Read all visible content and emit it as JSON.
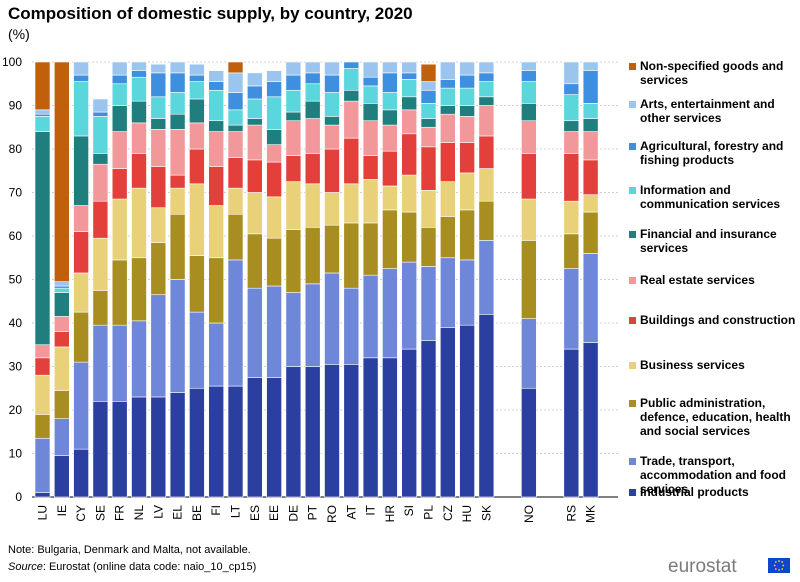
{
  "chart_data": {
    "type": "bar",
    "stacked": true,
    "title": "Composition of domestic supply, by country, 2020",
    "unit_label": "(%)",
    "ylim": [
      0,
      100
    ],
    "yticks": [
      0,
      10,
      20,
      30,
      40,
      50,
      60,
      70,
      80,
      90,
      100
    ],
    "categories": [
      "LU",
      "IE",
      "CY",
      "SE",
      "FR",
      "NL",
      "LV",
      "EL",
      "BE",
      "FI",
      "LT",
      "ES",
      "EE",
      "DE",
      "PT",
      "RO",
      "AT",
      "IT",
      "HR",
      "SI",
      "PL",
      "CZ",
      "HU",
      "SK",
      "NO",
      "RS",
      "MK"
    ],
    "group_breaks_after": [
      "SK",
      "NO"
    ],
    "legend_position": "right",
    "series": [
      {
        "name": "Industrial products",
        "color": "#2a3fa0",
        "values": [
          1,
          9.5,
          11,
          22,
          22,
          23,
          23,
          24,
          25,
          25.5,
          25.5,
          27.5,
          27.5,
          30,
          30,
          30.5,
          30.5,
          32,
          32,
          34,
          36,
          39,
          39.5,
          42,
          25,
          34,
          35.5
        ]
      },
      {
        "name": "Trade, transport, accommodation and food services",
        "color": "#6f87d9",
        "values": [
          12.5,
          8.5,
          20,
          17.5,
          17.5,
          17.5,
          23.5,
          26,
          17.5,
          14.5,
          29,
          20.5,
          21,
          17,
          19,
          21,
          17.5,
          19,
          20.5,
          20,
          17,
          16,
          15,
          17,
          16,
          18.5,
          20.5
        ]
      },
      {
        "name": "Public administration, defence, education, health and social services",
        "color": "#a88e20",
        "values": [
          5.5,
          6.5,
          11.5,
          8,
          15,
          14.5,
          12,
          15,
          13,
          15,
          10.5,
          12.5,
          11,
          14.5,
          13,
          11,
          15,
          12,
          13.5,
          11.5,
          9,
          9.5,
          11.5,
          9,
          18,
          8,
          9.5
        ]
      },
      {
        "name": "Business services",
        "color": "#e9d17a",
        "values": [
          9,
          10,
          9,
          12,
          14,
          16,
          8,
          6,
          16.5,
          12,
          6,
          9.5,
          9.5,
          11,
          10,
          7.5,
          9,
          10,
          5.5,
          8.5,
          8.5,
          8,
          8.5,
          7.5,
          9.5,
          7.5,
          4
        ]
      },
      {
        "name": "Buildings and construction",
        "color": "#e3403c",
        "values": [
          4,
          3.5,
          9.5,
          8.5,
          7,
          8,
          9.5,
          3,
          8,
          9,
          7,
          7.5,
          8,
          6,
          7,
          10,
          10.5,
          5.5,
          8,
          9.5,
          10,
          9,
          7,
          7.5,
          10.5,
          11,
          8
        ]
      },
      {
        "name": "Real estate services",
        "color": "#f2979a",
        "values": [
          3,
          3.5,
          6,
          8.5,
          8.5,
          7,
          8.5,
          10.5,
          6,
          8,
          6,
          8,
          4,
          8,
          8,
          5.5,
          8.5,
          8,
          6,
          5.5,
          4.5,
          6.5,
          6,
          7,
          7.5,
          5,
          6.5
        ]
      },
      {
        "name": "Financial and insurance services",
        "color": "#217e7e",
        "values": [
          49,
          5.5,
          16,
          2.5,
          6,
          5,
          2.5,
          3.5,
          5.5,
          2.5,
          1.5,
          1.5,
          3.5,
          2,
          4,
          2,
          2.5,
          4,
          3.5,
          3,
          2,
          2,
          2.5,
          2,
          4,
          2.5,
          3
        ]
      },
      {
        "name": "Information and communication services",
        "color": "#5ad6dc",
        "values": [
          3.5,
          1,
          12.5,
          8.5,
          5,
          5.5,
          5,
          5,
          4,
          7,
          3.5,
          4.5,
          7.5,
          5,
          4,
          5.5,
          5,
          4,
          4,
          4,
          3.5,
          4,
          4,
          3.5,
          5,
          6,
          3.5
        ]
      },
      {
        "name": "Agricultural, forestry and fishing products",
        "color": "#3f8fe0",
        "values": [
          0.5,
          0.5,
          1.5,
          1,
          2,
          1.5,
          5.5,
          4.5,
          1.5,
          2,
          4,
          3,
          3.5,
          3.5,
          2.5,
          4,
          3,
          2,
          4.5,
          1.5,
          3,
          2,
          3,
          2,
          2.5,
          2.5,
          7.5
        ]
      },
      {
        "name": "Arts, entertainment and other services",
        "color": "#9bc5ee",
        "values": [
          1,
          1,
          3,
          3,
          3,
          2,
          2,
          2.5,
          2.5,
          2.5,
          4.5,
          3,
          2.5,
          3,
          2.5,
          3,
          2.5,
          3.5,
          2.5,
          2.5,
          2,
          4,
          3,
          2.5,
          2,
          5,
          2
        ]
      },
      {
        "name": "Non-specified goods and services",
        "color": "#c0600c",
        "values": [
          11,
          50.5,
          0,
          0,
          0,
          0,
          0,
          0,
          0,
          0,
          3,
          0,
          0,
          0,
          0,
          0,
          0,
          0,
          0,
          0,
          4,
          0,
          0,
          0,
          0,
          0,
          0
        ]
      }
    ]
  },
  "legend_order": [
    10,
    9,
    8,
    7,
    6,
    5,
    4,
    3,
    2,
    1,
    0
  ],
  "footer": {
    "note": "Note: Bulgaria, Denmark and Malta, not available.",
    "source_label": "Source",
    "source_text": ": Eurostat (online data code: naio_10_cp15)"
  },
  "logo": {
    "text": "eurostat"
  }
}
